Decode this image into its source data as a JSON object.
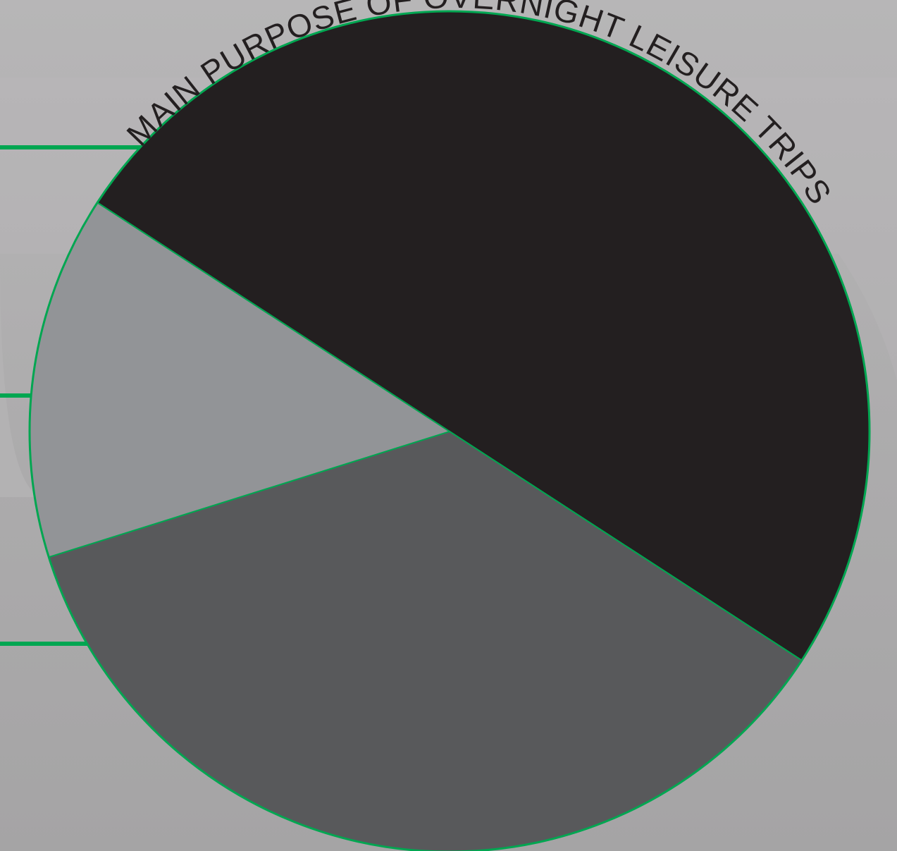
{
  "chart_data": {
    "type": "pie",
    "title": "MAIN PURPOSE OF OVERNIGHT LEISURE TRIPS",
    "slices": [
      {
        "value": 50.0,
        "color": "#231f20"
      },
      {
        "value": 36.0,
        "color": "#58595b"
      },
      {
        "value": 14.0,
        "color": "#929497"
      }
    ],
    "start_angle_deg": -147,
    "slice_border_color": "#00a651",
    "leader_line_color": "#00a651",
    "legend": "left, cropped"
  }
}
